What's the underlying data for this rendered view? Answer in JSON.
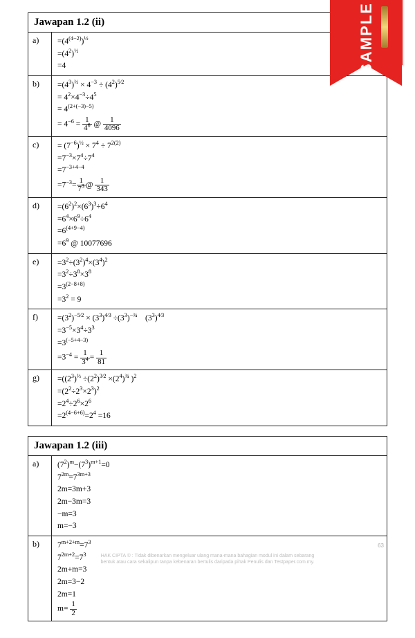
{
  "ribbon": {
    "label": "SAMPLE"
  },
  "tables": [
    {
      "title": "Jawapan 1.2 (ii)",
      "rows": [
        {
          "id": "a)",
          "html": "=(4<sup>(4−2)</sup>)<sup>½</sup>\n=(4<sup>2</sup>)<sup>½</sup>\n=4"
        },
        {
          "id": "b)",
          "html": "=(4<sup>3</sup>)<sup>⅔</sup> × 4<sup>−3</sup> ÷ (4<sup>2</sup>)<sup>5⁄2</sup>\n= 4<sup>2</sup>×4<sup>−3</sup>÷4<sup>5</sup>\n= 4<sup>(2+(−3)−5)</sup>\n= 4<sup>−6</sup> = <span class='frac'><span class='num'>1</span><span class='den'>4<sup>6</sup></span></span> @ <span class='frac'><span class='num'>1</span><span class='den'>4096</span></span>"
        },
        {
          "id": "c)",
          "html": "= (7<sup>−6</sup>)<sup>½</sup> × 7<sup>4</sup> ÷ 7<sup>2(2)</sup>\n=7<sup>−3</sup>×7<sup>4</sup>÷7<sup>4</sup>\n=7<sup>−3+4−4</sup>\n=7<sup>−3</sup>=<span class='frac'><span class='num'>1</span><span class='den'>7<sup>3</sup></span></span>@ <span class='frac'><span class='num'>1</span><span class='den'>343</span></span>"
        },
        {
          "id": "d)",
          "html": "=(6<sup>2</sup>)<sup>2</sup>×(6<sup>3</sup>)<sup>3</sup>÷6<sup>4</sup>\n=6<sup>4</sup>×6<sup>9</sup>÷6<sup>4</sup>\n=6<sup>(4+9−4)</sup>\n=6<sup>9</sup> @ 10077696"
        },
        {
          "id": "e)",
          "html": "=3<sup>2</sup>÷(3<sup>2</sup>)<sup>4</sup>×(3<sup>4</sup>)<sup>2</sup>\n=3<sup>2</sup>÷3<sup>8</sup>×3<sup>8</sup>\n=3<sup>(2−8+8)</sup>\n=3<sup>2</sup> = 9"
        },
        {
          "id": "f)",
          "html": "=(3<sup>2</sup>)<sup>−5⁄2</sup> × (3<sup>3</sup>)<sup>4⁄3</sup> ÷(3<sup>3</sup>)<sup>−¾</sup>&nbsp;&nbsp;&nbsp;&nbsp;(3<sup>3</sup>)<sup>4⁄3</sup>\n=3<sup>−5</sup>×3<sup>4</sup>÷3<sup>3</sup>\n=3<sup>(−5+4−3)</sup>\n=3<sup>−4</sup> = <span class='frac'><span class='num'>1</span><span class='den'>3<sup>4</sup></span></span>= <span class='frac'><span class='num'>1</span><span class='den'>81</span></span>"
        },
        {
          "id": "g)",
          "html": "=((2<sup>3</sup>)<sup>⅔</sup> ÷(2<sup>2</sup>)<sup>3⁄2</sup> ×(2<sup>4</sup>)<sup>¾</sup> )<sup>2</sup>\n=(2<sup>2</sup>÷2<sup>3</sup>×2<sup>3</sup>)<sup>2</sup>\n=2<sup>4</sup>÷2<sup>6</sup>×2<sup>6</sup>\n=2<sup>(4−6+6)</sup>=2<sup>4</sup> =16"
        }
      ]
    },
    {
      "title": "Jawapan 1.2 (iii)",
      "rows": [
        {
          "id": "a)",
          "html": "(7<sup>2</sup>)<sup>m</sup>−(7<sup>3</sup>)<sup>m+1</sup>=0\n7<sup>2m</sup>=7<sup>3m+3</sup>\n2m=3m+3\n2m−3m=3\n−m=3\nm=−3"
        },
        {
          "id": "b)",
          "html": "7<sup>m+2+m</sup>=7<sup>3</sup>\n7<sup>2m+2</sup>=7<sup>3</sup>\n2m+m=3\n2m=3−2\n2m=1\nm= <span class='frac'><span class='num'>1</span><span class='den'>2</span></span>"
        }
      ]
    }
  ],
  "pagenum": "63",
  "footer": {
    "line1": "HAK CIPTA © : Tidak dibenarkan mengeluar ulang mana-mana bahagian modul ini dalam sebarang",
    "line2": "bentuk atau cara sekalipun tanpa kebenaran bertulis daripada pihak Penulis dan Testpaper.com.my."
  },
  "colors": {
    "ribbon": "#e52320",
    "border": "#222222",
    "footer_text": "#bdbdbd"
  }
}
